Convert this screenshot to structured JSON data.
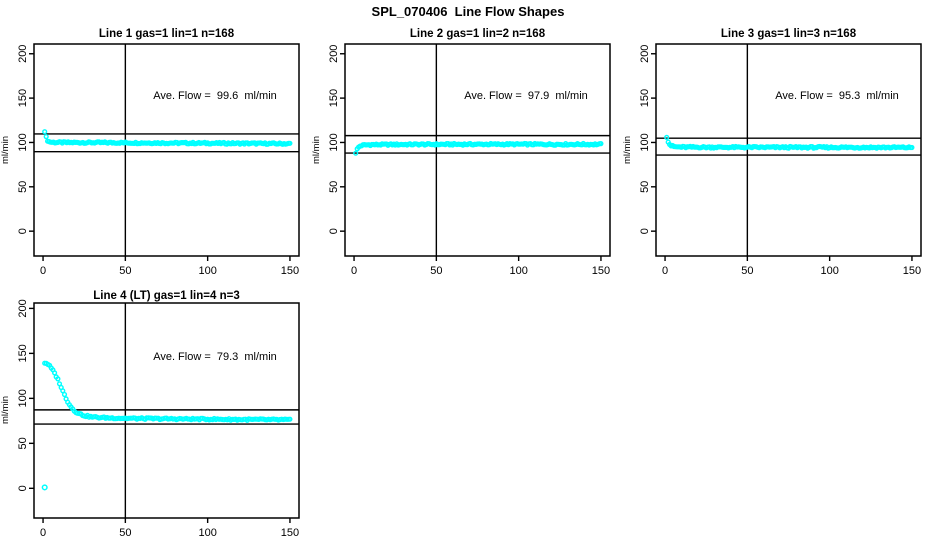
{
  "main_title": "SPL_070406  Line Flow Shapes",
  "marker_color": "#00FFFF",
  "axis_color": "#000000",
  "chart_data": [
    {
      "type": "scatter",
      "title": "Line 1 gas=1 lin=1 n=168",
      "annotation": "Ave. Flow =  99.6  ml/min",
      "ave_flow_ml_min": 99.6,
      "n_samples": 168,
      "ylabel": "ml/min",
      "xlabel": "",
      "xticks": [
        0,
        50,
        100,
        150
      ],
      "yticks": [
        0,
        50,
        100,
        150,
        200
      ],
      "xlim": [
        -5.5,
        155.5
      ],
      "ylim": [
        -28,
        211
      ],
      "vline_x": 50,
      "hlines": [
        109.6,
        89.6
      ],
      "n_markers": 168,
      "x_range": [
        1,
        150
      ],
      "profile": [
        [
          1,
          113
        ],
        [
          2,
          105
        ],
        [
          3,
          101.5
        ],
        [
          4,
          100.6
        ],
        [
          6,
          100.2
        ],
        [
          10,
          100
        ],
        [
          30,
          99.9
        ],
        [
          60,
          99.6
        ],
        [
          100,
          99.2
        ],
        [
          150,
          98.6
        ]
      ],
      "extra_points": []
    },
    {
      "type": "scatter",
      "title": "Line 2 gas=1 lin=2 n=168",
      "annotation": "Ave. Flow =  97.9  ml/min",
      "ave_flow_ml_min": 97.9,
      "n_samples": 168,
      "ylabel": "ml/min",
      "xlabel": "",
      "xticks": [
        0,
        50,
        100,
        150
      ],
      "yticks": [
        0,
        50,
        100,
        150,
        200
      ],
      "xlim": [
        -5.5,
        155.5
      ],
      "ylim": [
        -28,
        211
      ],
      "vline_x": 50,
      "hlines": [
        107.7,
        88.1
      ],
      "n_markers": 168,
      "x_range": [
        1,
        150
      ],
      "profile": [
        [
          1,
          88.5
        ],
        [
          2,
          92.8
        ],
        [
          3,
          95.2
        ],
        [
          4,
          96.4
        ],
        [
          6,
          97.1
        ],
        [
          10,
          97.5
        ],
        [
          30,
          97.8
        ],
        [
          80,
          98
        ],
        [
          150,
          97.9
        ]
      ],
      "extra_points": []
    },
    {
      "type": "scatter",
      "title": "Line 3 gas=1 lin=3 n=168",
      "annotation": "Ave. Flow =  95.3  ml/min",
      "ave_flow_ml_min": 95.3,
      "n_samples": 168,
      "ylabel": "ml/min",
      "xlabel": "",
      "xticks": [
        0,
        50,
        100,
        150
      ],
      "yticks": [
        0,
        50,
        100,
        150,
        200
      ],
      "xlim": [
        -5.5,
        155.5
      ],
      "ylim": [
        -28,
        211
      ],
      "vline_x": 50,
      "hlines": [
        104.8,
        85.8
      ],
      "n_markers": 168,
      "x_range": [
        1,
        150
      ],
      "profile": [
        [
          1,
          106.5
        ],
        [
          2,
          100.5
        ],
        [
          3,
          97.3
        ],
        [
          4,
          96
        ],
        [
          6,
          95.1
        ],
        [
          10,
          94.8
        ],
        [
          30,
          94.6
        ],
        [
          100,
          94.5
        ],
        [
          150,
          94.4
        ]
      ],
      "extra_points": []
    },
    {
      "type": "scatter",
      "title": "Line 4 (LT) gas=1 lin=4 n=3",
      "annotation": "Ave. Flow =  79.3  ml/min",
      "ave_flow_ml_min": 79.3,
      "n_samples": 3,
      "ylabel": "ml/min",
      "xlabel": "",
      "xticks": [
        0,
        50,
        100,
        150
      ],
      "yticks": [
        0,
        50,
        100,
        150,
        200
      ],
      "xlim": [
        -5.5,
        155.5
      ],
      "ylim": [
        -33,
        206
      ],
      "vline_x": 50,
      "hlines": [
        87.2,
        71.4
      ],
      "n_markers": 150,
      "x_range": [
        1,
        150
      ],
      "profile": [
        [
          1,
          139.5
        ],
        [
          2,
          139
        ],
        [
          3,
          138
        ],
        [
          4,
          136
        ],
        [
          5,
          133.5
        ],
        [
          6,
          131
        ],
        [
          7,
          128
        ],
        [
          8,
          124.5
        ],
        [
          9,
          121
        ],
        [
          10,
          117
        ],
        [
          11,
          112.5
        ],
        [
          12,
          108
        ],
        [
          13,
          104
        ],
        [
          14,
          100
        ],
        [
          15,
          96.5
        ],
        [
          16,
          93.5
        ],
        [
          17,
          90.5
        ],
        [
          18,
          88.5
        ],
        [
          19,
          86.5
        ],
        [
          20,
          85
        ],
        [
          22,
          83
        ],
        [
          24,
          81.5
        ],
        [
          26,
          80.5
        ],
        [
          28,
          79.8
        ],
        [
          30,
          79.3
        ],
        [
          35,
          78.7
        ],
        [
          40,
          78.3
        ],
        [
          50,
          77.9
        ],
        [
          60,
          77.6
        ],
        [
          80,
          77.2
        ],
        [
          100,
          76.9
        ],
        [
          120,
          76.5
        ],
        [
          150,
          76.2
        ]
      ],
      "extra_points": [
        [
          1,
          1
        ]
      ]
    }
  ]
}
